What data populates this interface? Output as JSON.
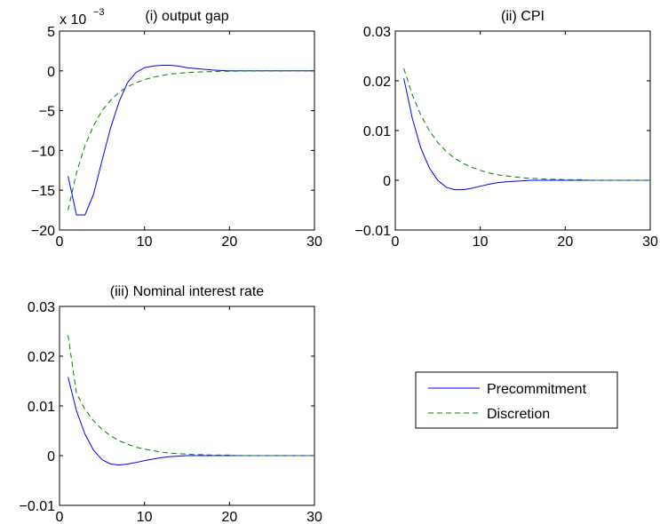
{
  "colors": {
    "precommitment": "#0000ff",
    "discretion": "#008000",
    "axes": "#000000",
    "background": "#ffffff"
  },
  "legend": {
    "placement": "bottom-right",
    "entries": [
      "Precommitment",
      "Discretion"
    ]
  },
  "chart_data": [
    {
      "type": "line",
      "title": "(i) output gap",
      "exponent_label": "x 10",
      "exponent_power": "−3",
      "xlim": [
        0,
        30
      ],
      "ylim": [
        -20,
        5
      ],
      "xticks": [
        0,
        10,
        20,
        30
      ],
      "xtick_labels": [
        "0",
        "10",
        "20",
        "30"
      ],
      "yticks": [
        5,
        0,
        -5,
        -10,
        -15,
        -20
      ],
      "ytick_labels": [
        "5",
        "0",
        "−5",
        "−10",
        "−15",
        "−20"
      ],
      "grid": false,
      "series": [
        {
          "name": "Precommitment",
          "style": "solid",
          "color": "#0000ff",
          "x": [
            1,
            2,
            3,
            4,
            5,
            6,
            7,
            8,
            9,
            10,
            11,
            12,
            13,
            14,
            15,
            16,
            17,
            18,
            19,
            20,
            21,
            22,
            23,
            24,
            25,
            26,
            27,
            28,
            29,
            30
          ],
          "y": [
            -13.2,
            -18.1,
            -18.1,
            -15.5,
            -11.3,
            -7.2,
            -3.9,
            -1.5,
            -0.2,
            0.4,
            0.6,
            0.7,
            0.7,
            0.6,
            0.4,
            0.3,
            0.2,
            0.1,
            0.05,
            0,
            0,
            0,
            0,
            0,
            0,
            0,
            0,
            0,
            0,
            0
          ]
        },
        {
          "name": "Discretion",
          "style": "dashed",
          "color": "#008000",
          "x": [
            1,
            2,
            3,
            4,
            5,
            6,
            7,
            8,
            9,
            10,
            11,
            12,
            13,
            14,
            15,
            16,
            17,
            18,
            19,
            20,
            21,
            22,
            23,
            24,
            25,
            26,
            27,
            28,
            29,
            30
          ],
          "y": [
            -17.5,
            -12.8,
            -9.4,
            -6.9,
            -5.0,
            -3.7,
            -2.7,
            -2.0,
            -1.5,
            -1.1,
            -0.8,
            -0.6,
            -0.4,
            -0.3,
            -0.22,
            -0.16,
            -0.12,
            -0.09,
            -0.06,
            -0.05,
            -0.03,
            -0.02,
            -0.02,
            -0.01,
            -0.01,
            -0.01,
            0,
            0,
            0,
            0
          ]
        }
      ]
    },
    {
      "type": "line",
      "title": "(ii) CPI",
      "xlim": [
        0,
        30
      ],
      "ylim": [
        -0.01,
        0.03
      ],
      "xticks": [
        0,
        10,
        20,
        30
      ],
      "xtick_labels": [
        "0",
        "10",
        "20",
        "30"
      ],
      "yticks": [
        0.03,
        0.02,
        0.01,
        0,
        -0.01
      ],
      "ytick_labels": [
        "0.03",
        "0.02",
        "0.01",
        "0",
        "−0.01"
      ],
      "grid": false,
      "series": [
        {
          "name": "Precommitment",
          "style": "solid",
          "color": "#0000ff",
          "x": [
            1,
            2,
            3,
            4,
            5,
            6,
            7,
            8,
            9,
            10,
            11,
            12,
            13,
            14,
            15,
            16,
            17,
            18,
            19,
            20,
            21,
            22,
            23,
            24,
            25,
            26,
            27,
            28,
            29,
            30
          ],
          "y": [
            0.0205,
            0.0125,
            0.0065,
            0.0025,
            0,
            -0.0014,
            -0.0019,
            -0.0019,
            -0.0016,
            -0.0012,
            -0.0008,
            -0.0005,
            -0.0003,
            -0.0002,
            -0.0001,
            0,
            0,
            0,
            0,
            0,
            0,
            0,
            0,
            0,
            0,
            0,
            0,
            0,
            0,
            0
          ]
        },
        {
          "name": "Discretion",
          "style": "dashed",
          "color": "#008000",
          "x": [
            1,
            2,
            3,
            4,
            5,
            6,
            7,
            8,
            9,
            10,
            11,
            12,
            13,
            14,
            15,
            16,
            17,
            18,
            19,
            20,
            21,
            22,
            23,
            24,
            25,
            26,
            27,
            28,
            29,
            30
          ],
          "y": [
            0.0225,
            0.0172,
            0.0131,
            0.01,
            0.0076,
            0.0058,
            0.0044,
            0.0034,
            0.0026,
            0.002,
            0.0015,
            0.0011,
            0.0009,
            0.0007,
            0.0005,
            0.0004,
            0.0003,
            0.0002,
            0.0002,
            0.0001,
            0.0001,
            0.0001,
            0,
            0,
            0,
            0,
            0,
            0,
            0,
            0
          ]
        }
      ]
    },
    {
      "type": "line",
      "title": "(iii) Nominal interest rate",
      "xlim": [
        0,
        30
      ],
      "ylim": [
        -0.01,
        0.03
      ],
      "xticks": [
        0,
        10,
        20,
        30
      ],
      "xtick_labels": [
        "0",
        "10",
        "20",
        "30"
      ],
      "yticks": [
        0.03,
        0.02,
        0.01,
        0,
        -0.01
      ],
      "ytick_labels": [
        "0.03",
        "0.02",
        "0.01",
        "0",
        "−0.01"
      ],
      "grid": false,
      "series": [
        {
          "name": "Precommitment",
          "style": "solid",
          "color": "#0000ff",
          "x": [
            1,
            2,
            3,
            4,
            5,
            6,
            7,
            8,
            9,
            10,
            11,
            12,
            13,
            14,
            15,
            16,
            17,
            18,
            19,
            20,
            21,
            22,
            23,
            24,
            25,
            26,
            27,
            28,
            29,
            30
          ],
          "y": [
            0.0158,
            0.009,
            0.0043,
            0.0011,
            -0.0008,
            -0.0017,
            -0.0019,
            -0.0017,
            -0.0014,
            -0.001,
            -0.0007,
            -0.0004,
            -0.0002,
            -0.0001,
            0,
            0,
            0,
            0,
            0,
            0,
            0,
            0,
            0,
            0,
            0,
            0,
            0,
            0,
            0,
            0
          ]
        },
        {
          "name": "Discretion",
          "style": "dashed",
          "color": "#008000",
          "x": [
            1,
            2,
            3,
            4,
            5,
            6,
            7,
            8,
            9,
            10,
            11,
            12,
            13,
            14,
            15,
            16,
            17,
            18,
            19,
            20,
            21,
            22,
            23,
            24,
            25,
            26,
            27,
            28,
            29,
            30
          ],
          "y": [
            0.0242,
            0.0125,
            0.0093,
            0.007,
            0.0053,
            0.004,
            0.003,
            0.0023,
            0.0017,
            0.0013,
            0.001,
            0.0007,
            0.0005,
            0.0004,
            0.0003,
            0.0002,
            0.0002,
            0.0001,
            0.0001,
            0.0001,
            0,
            0,
            0,
            0,
            0,
            0,
            0,
            0,
            0,
            0
          ]
        }
      ]
    }
  ]
}
